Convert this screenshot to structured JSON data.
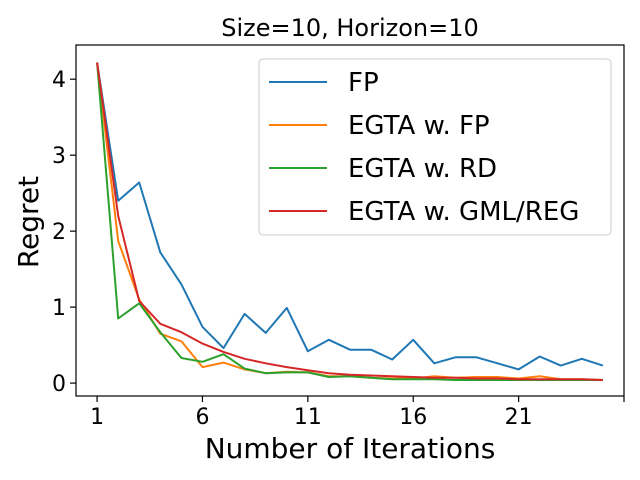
{
  "chart_data": {
    "type": "line",
    "title": "Size=10, Horizon=10",
    "xlabel": "Number of Iterations",
    "ylabel": "Regret",
    "xlim": [
      0,
      26
    ],
    "ylim": [
      -0.17,
      4.45
    ],
    "xticks": [
      1,
      6,
      11,
      16,
      21
    ],
    "yticks": [
      0,
      1,
      2,
      3,
      4
    ],
    "grid": false,
    "legend_position": "top-right",
    "x": [
      1,
      2,
      3,
      4,
      5,
      6,
      7,
      8,
      9,
      10,
      11,
      12,
      13,
      14,
      15,
      16,
      17,
      18,
      19,
      20,
      21,
      22,
      23,
      24,
      25
    ],
    "series": [
      {
        "name": "FP",
        "color": "#1f77b4",
        "values": [
          4.22,
          2.4,
          2.64,
          1.72,
          1.3,
          0.74,
          0.46,
          0.91,
          0.66,
          0.99,
          0.42,
          0.57,
          0.44,
          0.44,
          0.31,
          0.57,
          0.26,
          0.34,
          0.34,
          0.26,
          0.18,
          0.35,
          0.23,
          0.32,
          0.23
        ]
      },
      {
        "name": "EGTA w. FP",
        "color": "#ff7f0e",
        "values": [
          4.22,
          1.87,
          1.1,
          0.65,
          0.55,
          0.21,
          0.27,
          0.18,
          0.13,
          0.15,
          0.14,
          0.09,
          0.09,
          0.07,
          0.06,
          0.06,
          0.09,
          0.07,
          0.08,
          0.08,
          0.06,
          0.09,
          0.05,
          0.05,
          0.04
        ]
      },
      {
        "name": "EGTA w. RD",
        "color": "#2ca02c",
        "values": [
          4.22,
          0.85,
          1.05,
          0.67,
          0.33,
          0.28,
          0.38,
          0.19,
          0.13,
          0.14,
          0.14,
          0.08,
          0.09,
          0.07,
          0.05,
          0.05,
          0.05,
          0.04,
          0.04,
          0.04,
          0.04,
          0.04,
          0.04,
          0.04,
          0.04
        ]
      },
      {
        "name": "EGTA w. GML/REG",
        "color": "#d62728",
        "values": [
          4.22,
          2.2,
          1.08,
          0.78,
          0.67,
          0.52,
          0.41,
          0.32,
          0.26,
          0.21,
          0.17,
          0.13,
          0.11,
          0.1,
          0.09,
          0.08,
          0.07,
          0.07,
          0.06,
          0.06,
          0.05,
          0.05,
          0.05,
          0.05,
          0.04
        ]
      }
    ]
  }
}
